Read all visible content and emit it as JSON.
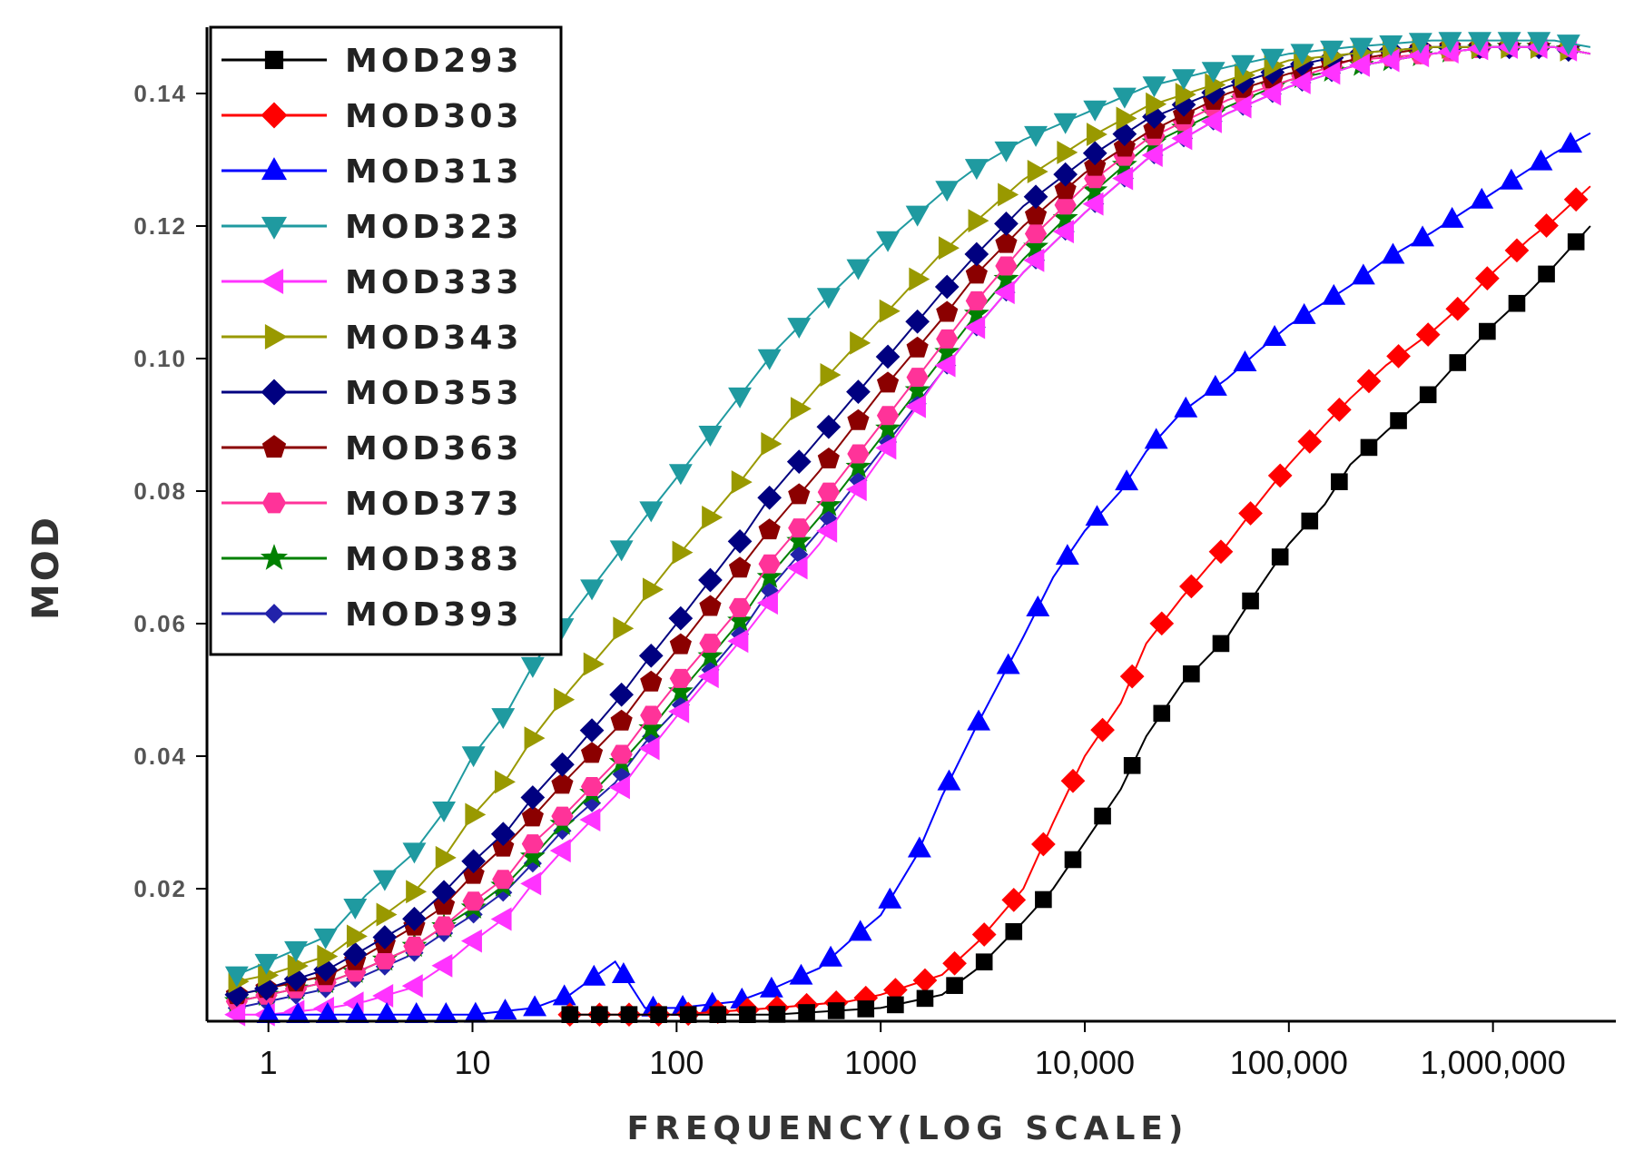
{
  "chart_data": {
    "type": "line",
    "title": "",
    "xlabel": "FREQUENCY(LOG SCALE)",
    "ylabel": "MOD",
    "xscale": "log",
    "xlim": [
      0.5,
      4000000
    ],
    "ylim": [
      0,
      0.15
    ],
    "grid": false,
    "legend_position": "top-left",
    "xticks": [
      {
        "value": 1,
        "label": "1"
      },
      {
        "value": 10,
        "label": "10"
      },
      {
        "value": 100,
        "label": "100"
      },
      {
        "value": 1000,
        "label": "1000"
      },
      {
        "value": 10000,
        "label": "10,000"
      },
      {
        "value": 100000,
        "label": "100,000"
      },
      {
        "value": 1000000,
        "label": "1,000,000"
      }
    ],
    "yticks": [
      {
        "value": 0.02,
        "label": "0.02"
      },
      {
        "value": 0.04,
        "label": "0.04"
      },
      {
        "value": 0.06,
        "label": "0.06"
      },
      {
        "value": 0.08,
        "label": "0.08"
      },
      {
        "value": 0.1,
        "label": "0.10"
      },
      {
        "value": 0.12,
        "label": "0.12"
      },
      {
        "value": 0.14,
        "label": "0.14"
      }
    ],
    "series": [
      {
        "name": "MOD293",
        "color": "#000000",
        "marker": "square",
        "x": [
          30,
          100,
          300,
          1000,
          2000,
          3000,
          5000,
          7000,
          10000,
          15000,
          20000,
          30000,
          50000,
          70000,
          100000,
          150000,
          200000,
          300000,
          500000,
          700000,
          1000000,
          1500000,
          2000000,
          3000000
        ],
        "y": [
          0.001,
          0.001,
          0.001,
          0.002,
          0.004,
          0.008,
          0.015,
          0.02,
          0.027,
          0.035,
          0.043,
          0.051,
          0.058,
          0.065,
          0.072,
          0.078,
          0.084,
          0.089,
          0.095,
          0.1,
          0.105,
          0.11,
          0.114,
          0.12
        ]
      },
      {
        "name": "MOD303",
        "color": "#ff0000",
        "marker": "diamond",
        "x": [
          30,
          100,
          300,
          700,
          1000,
          2000,
          3000,
          5000,
          7000,
          10000,
          15000,
          20000,
          30000,
          50000,
          70000,
          100000,
          150000,
          200000,
          300000,
          500000,
          700000,
          1000000,
          1500000,
          2000000,
          3000000
        ],
        "y": [
          0.001,
          0.001,
          0.002,
          0.003,
          0.004,
          0.007,
          0.012,
          0.02,
          0.03,
          0.04,
          0.048,
          0.057,
          0.064,
          0.072,
          0.078,
          0.084,
          0.09,
          0.094,
          0.099,
          0.104,
          0.108,
          0.113,
          0.118,
          0.121,
          0.126
        ]
      },
      {
        "name": "MOD313",
        "color": "#0000ff",
        "marker": "triangle-up",
        "x": [
          1,
          3,
          10,
          20,
          30,
          50,
          70,
          100,
          200,
          300,
          500,
          700,
          1000,
          1500,
          2000,
          3000,
          5000,
          7000,
          10000,
          15000,
          20000,
          30000,
          50000,
          70000,
          100000,
          200000,
          300000,
          500000,
          1000000,
          2000000,
          3000000
        ],
        "y": [
          0.001,
          0.001,
          0.001,
          0.002,
          0.004,
          0.009,
          0.002,
          0.002,
          0.003,
          0.005,
          0.008,
          0.012,
          0.016,
          0.025,
          0.034,
          0.045,
          0.058,
          0.067,
          0.074,
          0.08,
          0.086,
          0.092,
          0.097,
          0.101,
          0.105,
          0.111,
          0.115,
          0.119,
          0.125,
          0.131,
          0.134
        ]
      },
      {
        "name": "MOD323",
        "color": "#1f9aa0",
        "marker": "triangle-down",
        "x": [
          0.7,
          1,
          2,
          3,
          5,
          7,
          10,
          15,
          20,
          30,
          50,
          70,
          100,
          200,
          300,
          500,
          1000,
          2000,
          3000,
          5000,
          10000,
          20000,
          50000,
          100000,
          200000,
          500000,
          1000000,
          2000000,
          3000000
        ],
        "y": [
          0.007,
          0.009,
          0.013,
          0.019,
          0.025,
          0.031,
          0.04,
          0.047,
          0.054,
          0.061,
          0.07,
          0.076,
          0.082,
          0.094,
          0.101,
          0.108,
          0.117,
          0.125,
          0.129,
          0.133,
          0.137,
          0.141,
          0.144,
          0.146,
          0.147,
          0.148,
          0.148,
          0.148,
          0.147
        ]
      },
      {
        "name": "MOD333",
        "color": "#ff33ff",
        "marker": "triangle-left",
        "x": [
          0.7,
          1,
          2,
          3,
          5,
          7,
          10,
          15,
          20,
          30,
          50,
          70,
          100,
          200,
          300,
          500,
          1000,
          2000,
          3000,
          5000,
          10000,
          20000,
          50000,
          100000,
          200000,
          500000,
          1000000,
          2000000,
          3000000
        ],
        "y": [
          0.001,
          0.001,
          0.002,
          0.003,
          0.005,
          0.008,
          0.012,
          0.016,
          0.021,
          0.027,
          0.034,
          0.04,
          0.046,
          0.057,
          0.064,
          0.072,
          0.085,
          0.098,
          0.105,
          0.113,
          0.122,
          0.13,
          0.137,
          0.141,
          0.144,
          0.146,
          0.147,
          0.147,
          0.146
        ]
      },
      {
        "name": "MOD343",
        "color": "#999900",
        "marker": "triangle-right",
        "x": [
          0.7,
          1,
          2,
          3,
          5,
          7,
          10,
          15,
          20,
          30,
          50,
          70,
          100,
          200,
          300,
          500,
          1000,
          2000,
          3000,
          5000,
          10000,
          20000,
          50000,
          100000,
          200000,
          500000,
          1000000,
          2000000,
          3000000
        ],
        "y": [
          0.006,
          0.007,
          0.01,
          0.014,
          0.019,
          0.024,
          0.031,
          0.037,
          0.043,
          0.05,
          0.058,
          0.064,
          0.07,
          0.081,
          0.088,
          0.096,
          0.106,
          0.116,
          0.121,
          0.127,
          0.133,
          0.138,
          0.142,
          0.145,
          0.146,
          0.147,
          0.147,
          0.147,
          0.146
        ]
      },
      {
        "name": "MOD353",
        "color": "#000080",
        "marker": "diamond",
        "x": [
          0.7,
          1,
          2,
          3,
          5,
          7,
          10,
          15,
          20,
          30,
          50,
          70,
          100,
          200,
          300,
          500,
          1000,
          2000,
          3000,
          5000,
          10000,
          20000,
          50000,
          100000,
          200000,
          500000,
          1000000,
          2000000,
          3000000
        ],
        "y": [
          0.004,
          0.005,
          0.008,
          0.011,
          0.015,
          0.019,
          0.024,
          0.029,
          0.034,
          0.04,
          0.048,
          0.054,
          0.06,
          0.072,
          0.08,
          0.088,
          0.099,
          0.11,
          0.116,
          0.123,
          0.13,
          0.136,
          0.141,
          0.144,
          0.146,
          0.147,
          0.147,
          0.147,
          0.146
        ]
      },
      {
        "name": "MOD363",
        "color": "#8b0000",
        "marker": "pentagon",
        "x": [
          0.7,
          1,
          2,
          3,
          5,
          7,
          10,
          15,
          20,
          30,
          50,
          70,
          100,
          200,
          300,
          500,
          1000,
          2000,
          3000,
          5000,
          10000,
          20000,
          50000,
          100000,
          200000,
          500000,
          1000000,
          2000000,
          3000000
        ],
        "y": [
          0.004,
          0.005,
          0.007,
          0.01,
          0.014,
          0.017,
          0.022,
          0.027,
          0.031,
          0.037,
          0.044,
          0.05,
          0.056,
          0.068,
          0.075,
          0.083,
          0.095,
          0.106,
          0.113,
          0.12,
          0.128,
          0.134,
          0.14,
          0.143,
          0.145,
          0.147,
          0.147,
          0.147,
          0.146
        ]
      },
      {
        "name": "MOD373",
        "color": "#ff3399",
        "marker": "hexagon",
        "x": [
          0.7,
          1,
          2,
          3,
          5,
          7,
          10,
          15,
          20,
          30,
          50,
          70,
          100,
          200,
          300,
          500,
          1000,
          2000,
          3000,
          5000,
          10000,
          20000,
          50000,
          100000,
          200000,
          500000,
          1000000,
          2000000,
          3000000
        ],
        "y": [
          0.003,
          0.004,
          0.006,
          0.008,
          0.011,
          0.014,
          0.018,
          0.022,
          0.027,
          0.032,
          0.039,
          0.045,
          0.051,
          0.062,
          0.07,
          0.078,
          0.09,
          0.102,
          0.109,
          0.117,
          0.126,
          0.133,
          0.139,
          0.142,
          0.145,
          0.146,
          0.147,
          0.147,
          0.146
        ]
      },
      {
        "name": "MOD383",
        "color": "#008000",
        "marker": "star",
        "x": [
          0.7,
          1,
          2,
          3,
          5,
          7,
          10,
          15,
          20,
          30,
          50,
          70,
          100,
          200,
          300,
          500,
          1000,
          2000,
          3000,
          5000,
          10000,
          20000,
          50000,
          100000,
          200000,
          500000,
          1000000,
          2000000,
          3000000
        ],
        "y": [
          0.003,
          0.004,
          0.006,
          0.008,
          0.011,
          0.014,
          0.017,
          0.021,
          0.025,
          0.031,
          0.038,
          0.043,
          0.049,
          0.06,
          0.068,
          0.076,
          0.088,
          0.1,
          0.107,
          0.115,
          0.124,
          0.132,
          0.138,
          0.142,
          0.144,
          0.146,
          0.147,
          0.147,
          0.146
        ]
      },
      {
        "name": "MOD393",
        "color": "#2222aa",
        "marker": "small-diamond",
        "x": [
          0.7,
          1,
          2,
          3,
          5,
          7,
          10,
          15,
          20,
          30,
          50,
          70,
          100,
          200,
          300,
          500,
          1000,
          2000,
          3000,
          5000,
          10000,
          20000,
          50000,
          100000,
          200000,
          500000,
          1000000,
          2000000,
          3000000
        ],
        "y": [
          0.002,
          0.003,
          0.005,
          0.007,
          0.01,
          0.013,
          0.016,
          0.02,
          0.024,
          0.03,
          0.036,
          0.042,
          0.047,
          0.058,
          0.066,
          0.074,
          0.086,
          0.098,
          0.105,
          0.113,
          0.122,
          0.13,
          0.137,
          0.141,
          0.144,
          0.146,
          0.147,
          0.147,
          0.146
        ]
      }
    ]
  }
}
